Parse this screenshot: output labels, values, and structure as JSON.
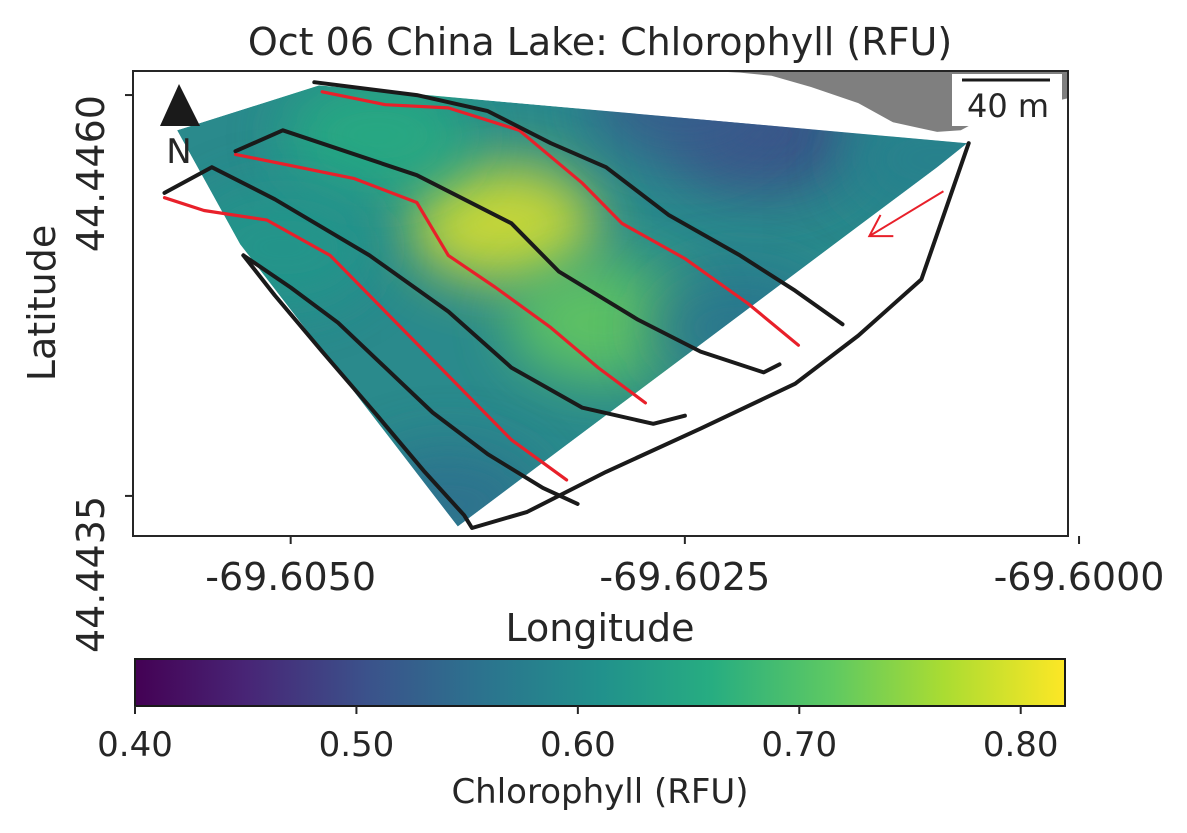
{
  "chart_data": {
    "type": "heatmap",
    "title": "Oct 06 China Lake: Chlorophyll (RFU)",
    "xlabel": "Longitude",
    "ylabel": "Latitude",
    "xlim": [
      -69.606,
      -69.60007
    ],
    "ylim": [
      44.44325,
      44.44615
    ],
    "x_ticks": [
      -69.605,
      -69.6025,
      -69.6
    ],
    "x_tick_labels": [
      "-69.6050",
      "-69.6025",
      "-69.6000"
    ],
    "y_ticks": [
      44.4435,
      44.446
    ],
    "y_tick_labels": [
      "44.4435",
      "44.4460"
    ],
    "grid": false,
    "north_arrow_label": "N",
    "scale_bar_label": "40 m",
    "colorbar": {
      "label": "Chlorophyll (RFU)",
      "colormap": "viridis",
      "range": [
        0.4,
        0.82
      ],
      "ticks": [
        0.4,
        0.5,
        0.6,
        0.7,
        0.8
      ],
      "tick_labels": [
        "0.40",
        "0.50",
        "0.60",
        "0.70",
        "0.80"
      ]
    },
    "survey_area": {
      "outline_lon_lat": [
        [
          -69.60572,
          44.44578
        ],
        [
          -69.60482,
          44.44606
        ],
        [
          -69.60071,
          44.4457
        ],
        [
          -69.6009,
          44.44555
        ],
        [
          -69.60394,
          44.44331
        ],
        [
          -69.60532,
          44.44507
        ]
      ],
      "field_samples": [
        {
          "lon": -69.60366,
          "lat": 44.4452,
          "value": 0.8
        },
        {
          "lon": -69.60302,
          "lat": 44.44458,
          "value": 0.72
        },
        {
          "lon": -69.60445,
          "lat": 44.44575,
          "value": 0.66
        },
        {
          "lon": -69.60505,
          "lat": 44.44505,
          "value": 0.62
        },
        {
          "lon": -69.602,
          "lat": 44.44575,
          "value": 0.5
        },
        {
          "lon": -69.6025,
          "lat": 44.44595,
          "value": 0.52
        },
        {
          "lon": -69.6009,
          "lat": 44.4456,
          "value": 0.58
        },
        {
          "lon": -69.604,
          "lat": 44.44345,
          "value": 0.55
        },
        {
          "lon": -69.60215,
          "lat": 44.44455,
          "value": 0.56
        }
      ]
    },
    "transects": {
      "colors": {
        "black": "#1a1a1a",
        "red": "#e8202a"
      },
      "lines": [
        {
          "color": "red",
          "points": [
            [
              -69.6048,
              44.44602
            ],
            [
              -69.6044,
              44.44594
            ],
            [
              -69.604,
              44.44592
            ],
            [
              -69.60355,
              44.44578
            ],
            [
              -69.60315,
              44.44545
            ],
            [
              -69.6029,
              44.4452
            ],
            [
              -69.6025,
              44.44498
            ],
            [
              -69.6021,
              44.4447
            ],
            [
              -69.60178,
              44.44444
            ]
          ]
        },
        {
          "color": "black",
          "points": [
            [
              -69.60485,
              44.44608
            ],
            [
              -69.6042,
              44.446
            ],
            [
              -69.60375,
              44.4459
            ],
            [
              -69.60335,
              44.4457
            ],
            [
              -69.603,
              44.44555
            ],
            [
              -69.6026,
              44.44525
            ],
            [
              -69.60215,
              44.445
            ],
            [
              -69.6018,
              44.44478
            ],
            [
              -69.6015,
              44.44457
            ]
          ]
        },
        {
          "color": "red",
          "points": [
            [
              -69.60535,
              44.44563
            ],
            [
              -69.605,
              44.44556
            ],
            [
              -69.6046,
              44.44548
            ],
            [
              -69.6042,
              44.44533
            ],
            [
              -69.604,
              44.445
            ],
            [
              -69.6037,
              44.4448
            ],
            [
              -69.60335,
              44.44455
            ],
            [
              -69.60305,
              44.4443
            ],
            [
              -69.60275,
              44.44408
            ]
          ]
        },
        {
          "color": "black",
          "points": [
            [
              -69.60535,
              44.44565
            ],
            [
              -69.60505,
              44.44578
            ],
            [
              -69.6042,
              44.4455
            ],
            [
              -69.6036,
              44.4452
            ],
            [
              -69.6033,
              44.4449
            ],
            [
              -69.6028,
              44.4446
            ],
            [
              -69.6024,
              44.4444
            ],
            [
              -69.602,
              44.44427
            ],
            [
              -69.6019,
              44.44432
            ]
          ]
        },
        {
          "color": "red",
          "points": [
            [
              -69.6058,
              44.44536
            ],
            [
              -69.60555,
              44.44528
            ],
            [
              -69.60515,
              44.44522
            ],
            [
              -69.60475,
              44.445
            ],
            [
              -69.60445,
              44.4447
            ],
            [
              -69.60415,
              44.4444
            ],
            [
              -69.60385,
              44.4441
            ],
            [
              -69.6036,
              44.44385
            ],
            [
              -69.60325,
              44.4436
            ]
          ]
        },
        {
          "color": "black",
          "points": [
            [
              -69.6058,
              44.44539
            ],
            [
              -69.6055,
              44.44555
            ],
            [
              -69.6051,
              44.44535
            ],
            [
              -69.6045,
              44.445
            ],
            [
              -69.604,
              44.44465
            ],
            [
              -69.6036,
              44.4443
            ],
            [
              -69.60315,
              44.44405
            ],
            [
              -69.6027,
              44.44395
            ],
            [
              -69.6025,
              44.444
            ]
          ]
        },
        {
          "color": "black",
          "points": [
            [
              -69.6053,
              44.445
            ],
            [
              -69.605,
              44.4448
            ],
            [
              -69.6047,
              44.44458
            ],
            [
              -69.6044,
              44.4443
            ],
            [
              -69.6041,
              44.44402
            ],
            [
              -69.60375,
              44.44376
            ],
            [
              -69.6034,
              44.44355
            ],
            [
              -69.60318,
              44.44345
            ]
          ]
        },
        {
          "color": "black",
          "points": [
            [
              -69.6053,
              44.445
            ],
            [
              -69.6051,
              44.44475
            ],
            [
              -69.6048,
              44.4444
            ],
            [
              -69.60445,
              44.444
            ],
            [
              -69.60415,
              44.44365
            ],
            [
              -69.6039,
              44.44338
            ],
            [
              -69.60385,
              44.4433
            ],
            [
              -69.6035,
              44.4434
            ],
            [
              -69.603,
              44.44365
            ],
            [
              -69.6024,
              44.44392
            ],
            [
              -69.6018,
              44.4442
            ],
            [
              -69.6014,
              44.4445
            ],
            [
              -69.601,
              44.44485
            ],
            [
              -69.6007,
              44.4457
            ]
          ]
        }
      ]
    },
    "shoreline_lon_lat": [
      [
        -69.60235,
        44.44615
      ],
      [
        -69.60007,
        44.44615
      ],
      [
        -69.60007,
        44.44598
      ],
      [
        -69.6006,
        44.44586
      ],
      [
        -69.60075,
        44.44578
      ],
      [
        -69.6009,
        44.44577
      ],
      [
        -69.60118,
        44.44583
      ],
      [
        -69.6014,
        44.44595
      ],
      [
        -69.6017,
        44.44605
      ],
      [
        -69.60195,
        44.44612
      ],
      [
        -69.60215,
        44.44614
      ]
    ],
    "direction_arrow_lon_lat": [
      [
        -69.60086,
        44.4454
      ],
      [
        -69.60133,
        44.44512
      ]
    ]
  }
}
